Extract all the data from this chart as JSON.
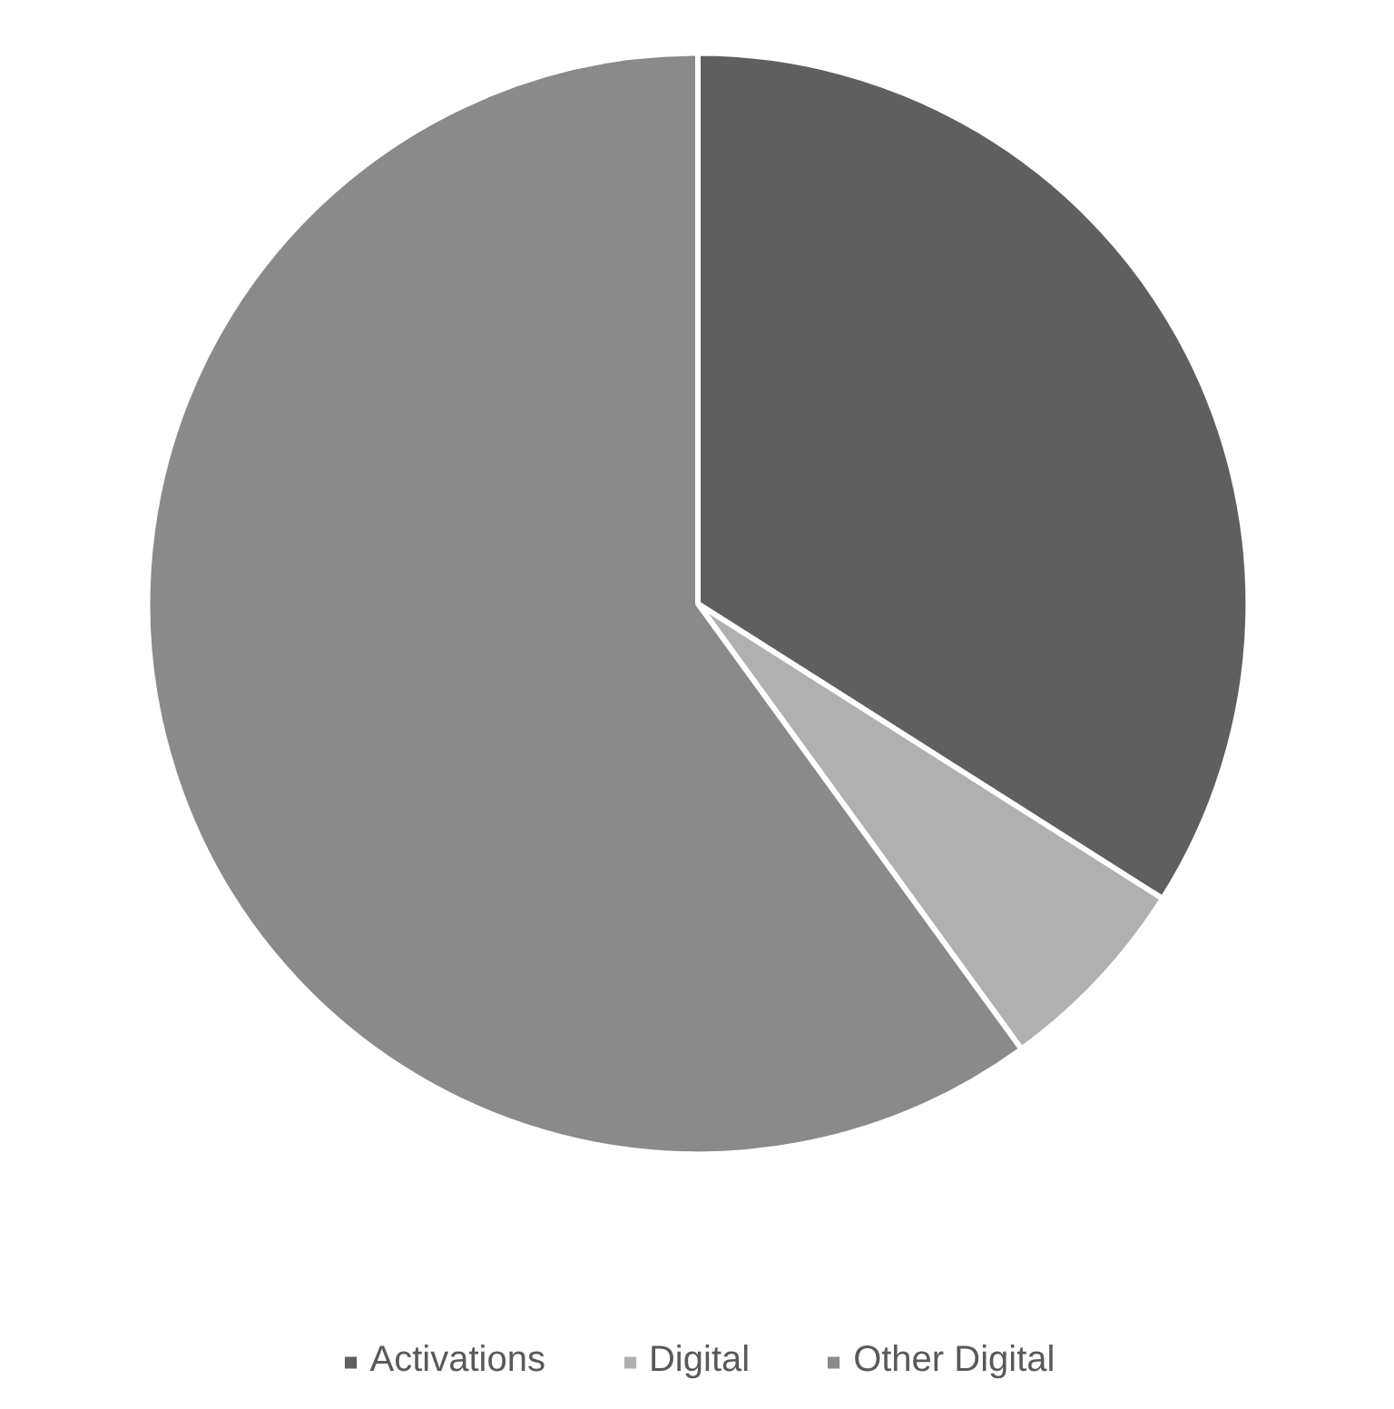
{
  "chart_data": {
    "type": "pie",
    "categories": [
      "Activations",
      "Digital",
      "Other Digital"
    ],
    "values": [
      34,
      6,
      60
    ],
    "colors": [
      "#5f5f5f",
      "#b0b0b0",
      "#8a8a8a"
    ],
    "legend": "bottom"
  }
}
